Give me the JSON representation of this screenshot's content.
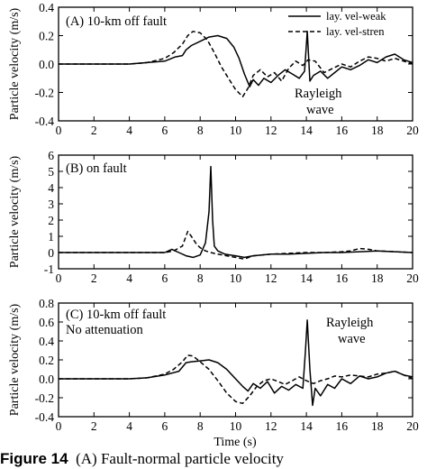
{
  "caption": {
    "label": "Figure 14",
    "text": "(A) Fault-normal particle velocity"
  },
  "chart_data": [
    {
      "type": "line",
      "panel_label": "(A) 10-km off fault",
      "annotation": {
        "text1": "Rayleigh",
        "text2": "wave"
      },
      "legend": {
        "position": "top-right",
        "entries": [
          "lay. vel-weak",
          "lay. vel-stren"
        ]
      },
      "ylabel": "Particle velocity (m/s)",
      "xlabel": "",
      "xlim": [
        0,
        20
      ],
      "ylim": [
        -0.4,
        0.4
      ],
      "xticks": [
        0,
        2,
        4,
        6,
        8,
        10,
        12,
        14,
        16,
        18,
        20
      ],
      "yticks": [
        -0.4,
        -0.2,
        0.0,
        0.2,
        0.4
      ],
      "ytick_labels": [
        "-0.4",
        "-0.2",
        "0.0",
        "0.2",
        "0.4"
      ],
      "series": [
        {
          "name": "lay. vel-weak",
          "style": "solid",
          "x": [
            0,
            4.0,
            5.0,
            6.0,
            6.6,
            7.0,
            7.2,
            7.5,
            8.0,
            8.5,
            9.0,
            9.5,
            9.9,
            10.2,
            10.5,
            10.8,
            11.0,
            11.3,
            11.6,
            12.0,
            12.4,
            12.8,
            13.2,
            13.6,
            13.9,
            14.05,
            14.2,
            14.4,
            14.8,
            15.2,
            15.6,
            16.0,
            16.5,
            17.0,
            17.5,
            18.0,
            18.5,
            19.0,
            19.5,
            20.0
          ],
          "y": [
            0,
            0,
            0.01,
            0.02,
            0.05,
            0.06,
            0.1,
            0.13,
            0.16,
            0.19,
            0.2,
            0.18,
            0.12,
            0.04,
            -0.07,
            -0.16,
            -0.11,
            -0.15,
            -0.1,
            -0.13,
            -0.08,
            -0.04,
            -0.07,
            -0.1,
            -0.05,
            0.23,
            -0.12,
            -0.08,
            -0.05,
            -0.1,
            -0.06,
            -0.02,
            -0.04,
            -0.01,
            0.03,
            0.01,
            0.05,
            0.07,
            0.03,
            0.01
          ]
        },
        {
          "name": "lay. vel-stren",
          "style": "dashed",
          "x": [
            0,
            4.0,
            5.0,
            6.0,
            6.5,
            7.0,
            7.3,
            7.6,
            8.0,
            8.4,
            8.8,
            9.2,
            9.6,
            10.0,
            10.4,
            10.7,
            11.0,
            11.4,
            11.8,
            12.2,
            12.6,
            13.0,
            13.4,
            13.8,
            14.1,
            14.5,
            15.0,
            15.5,
            16.0,
            16.5,
            17.0,
            17.5,
            18.0,
            18.5,
            19.0,
            19.5,
            20.0
          ],
          "y": [
            0,
            0,
            0.01,
            0.04,
            0.08,
            0.14,
            0.2,
            0.23,
            0.22,
            0.17,
            0.08,
            -0.02,
            -0.1,
            -0.18,
            -0.23,
            -0.17,
            -0.08,
            -0.04,
            -0.09,
            -0.06,
            -0.12,
            -0.03,
            0.02,
            -0.01,
            0.03,
            0.02,
            -0.06,
            -0.03,
            0.0,
            -0.02,
            0.02,
            0.05,
            0.04,
            0.02,
            0.04,
            0.02,
            0.0
          ]
        }
      ]
    },
    {
      "type": "line",
      "panel_label": "(B) on fault",
      "ylabel": "Particle velocity (m/s)",
      "xlabel": "",
      "xlim": [
        0,
        20
      ],
      "ylim": [
        -1,
        6
      ],
      "xticks": [
        0,
        2,
        4,
        6,
        8,
        10,
        12,
        14,
        16,
        18,
        20
      ],
      "yticks": [
        -1,
        0,
        1,
        2,
        3,
        4,
        5,
        6
      ],
      "ytick_labels": [
        "-1",
        "0",
        "1",
        "2",
        "3",
        "4",
        "5",
        "6"
      ],
      "series": [
        {
          "name": "lay. vel-weak",
          "style": "solid",
          "x": [
            0,
            6.0,
            6.4,
            6.8,
            7.2,
            7.6,
            8.0,
            8.3,
            8.5,
            8.6,
            8.7,
            8.8,
            9.0,
            9.4,
            10.0,
            10.5,
            11.0,
            12.0,
            13.0,
            14.0,
            15.0,
            16.0,
            17.0,
            18.0,
            19.0,
            20.0
          ],
          "y": [
            0,
            0,
            0.2,
            0.0,
            -0.2,
            -0.3,
            -0.15,
            0.6,
            2.5,
            5.3,
            2.0,
            0.4,
            0.1,
            -0.1,
            -0.2,
            -0.3,
            -0.2,
            -0.1,
            -0.1,
            -0.05,
            0.0,
            0.0,
            0.05,
            0.1,
            0.05,
            0.0
          ]
        },
        {
          "name": "lay. vel-stren",
          "style": "dashed",
          "x": [
            0,
            6.0,
            6.5,
            7.0,
            7.3,
            7.5,
            7.8,
            8.0,
            8.3,
            8.6,
            9.0,
            9.5,
            10.0,
            10.5,
            11.0,
            12.0,
            13.0,
            14.0,
            15.0,
            16.0,
            16.5,
            17.0,
            17.5,
            18.0,
            19.0,
            20.0
          ],
          "y": [
            0,
            0,
            0.1,
            0.4,
            1.3,
            1.0,
            0.5,
            0.3,
            0.1,
            0.0,
            -0.1,
            -0.2,
            -0.3,
            -0.4,
            -0.2,
            -0.1,
            -0.05,
            0.0,
            0.0,
            0.05,
            0.1,
            0.25,
            0.2,
            0.1,
            0.05,
            0.0
          ]
        }
      ]
    },
    {
      "type": "line",
      "panel_label": "(C) 10-km off fault",
      "panel_label2": "No attenuation",
      "annotation": {
        "text1": "Rayleigh",
        "text2": "wave"
      },
      "ylabel": "Particle velocity (m/s)",
      "xlabel": "Time (s)",
      "xlim": [
        0,
        20
      ],
      "ylim": [
        -0.4,
        0.8
      ],
      "xticks": [
        0,
        2,
        4,
        6,
        8,
        10,
        12,
        14,
        16,
        18,
        20
      ],
      "yticks": [
        -0.4,
        -0.2,
        0.0,
        0.2,
        0.4,
        0.6,
        0.8
      ],
      "ytick_labels": [
        "-0.4",
        "-0.2",
        "0.0",
        "0.2",
        "0.4",
        "0.6",
        "0.8"
      ],
      "series": [
        {
          "name": "lay. vel-weak",
          "style": "solid",
          "x": [
            0,
            4.0,
            5.0,
            6.0,
            6.8,
            7.2,
            7.5,
            8.0,
            8.5,
            9.0,
            9.5,
            10.0,
            10.4,
            10.7,
            11.0,
            11.4,
            11.8,
            12.2,
            12.6,
            13.0,
            13.4,
            13.8,
            13.95,
            14.05,
            14.2,
            14.35,
            14.5,
            14.8,
            15.2,
            15.6,
            16.0,
            16.5,
            17.0,
            17.5,
            18.0,
            18.5,
            19.0,
            19.5,
            20.0
          ],
          "y": [
            0,
            0,
            0.01,
            0.04,
            0.08,
            0.17,
            0.18,
            0.19,
            0.2,
            0.17,
            0.1,
            0.0,
            -0.08,
            -0.13,
            -0.05,
            -0.1,
            -0.03,
            -0.15,
            -0.08,
            -0.12,
            -0.06,
            -0.1,
            0.3,
            0.62,
            0.1,
            -0.28,
            -0.1,
            -0.18,
            -0.06,
            -0.1,
            0.0,
            -0.05,
            0.03,
            0.0,
            0.02,
            0.06,
            0.08,
            0.04,
            0.02
          ]
        },
        {
          "name": "lay. vel-stren",
          "style": "dashed",
          "x": [
            0,
            4.0,
            5.0,
            6.0,
            6.5,
            7.0,
            7.3,
            7.6,
            8.0,
            8.5,
            9.0,
            9.5,
            10.0,
            10.4,
            10.8,
            11.2,
            11.6,
            12.0,
            12.4,
            12.8,
            13.2,
            13.6,
            14.0,
            14.4,
            14.8,
            15.2,
            15.6,
            16.0,
            16.5,
            17.0,
            17.5,
            18.0,
            18.5,
            19.0,
            19.5,
            20.0
          ],
          "y": [
            0,
            0,
            0.01,
            0.05,
            0.1,
            0.18,
            0.25,
            0.24,
            0.18,
            0.1,
            -0.02,
            -0.15,
            -0.24,
            -0.26,
            -0.18,
            -0.08,
            -0.02,
            0.0,
            -0.03,
            -0.06,
            -0.02,
            0.02,
            -0.02,
            -0.05,
            -0.02,
            0.0,
            0.03,
            0.02,
            0.04,
            0.03,
            0.02,
            0.05,
            0.06,
            0.08,
            0.04,
            0.0
          ]
        }
      ]
    }
  ]
}
